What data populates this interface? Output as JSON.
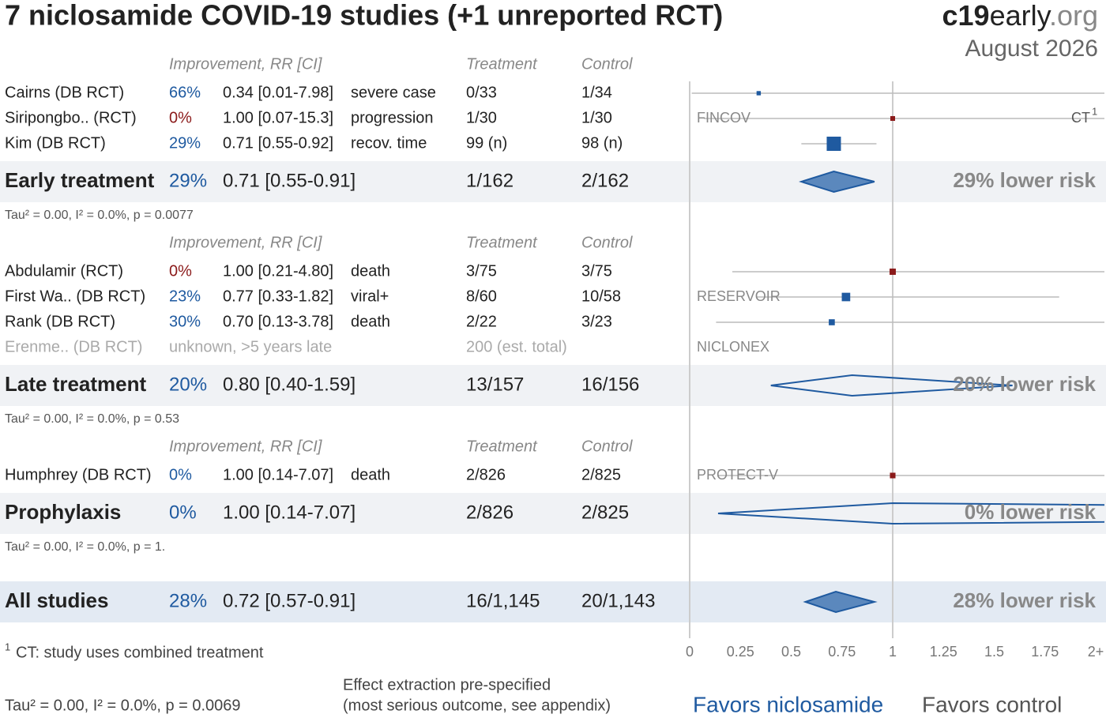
{
  "chart_data": {
    "type": "forest",
    "title": "7 niclosamide COVID-19 studies (+1 unreported RCT)",
    "brand": [
      "c19",
      "early",
      ".org"
    ],
    "date": "August 2026",
    "headers": [
      "Improvement, RR [CI]",
      "Treatment",
      "Control"
    ],
    "xlim": [
      0,
      2
    ],
    "xticks": [
      0,
      0.25,
      0.5,
      0.75,
      1,
      1.25,
      1.5,
      1.75,
      {
        "value": 2,
        "label": "2+"
      }
    ],
    "groups": [
      {
        "studies": [
          {
            "name": "Cairns (DB RCT)",
            "improvement": "66%",
            "color": "#1f5aa0",
            "rr": 0.34,
            "ci_low": 0.01,
            "ci_high": 7.98,
            "rr_label": "0.34 [0.01-7.98]",
            "outcome": "severe case",
            "treatment": "0/33",
            "control": "1/34"
          },
          {
            "name": "Siripongbo.. (RCT)",
            "improvement": "0%",
            "color": "#8b1a1a",
            "rr": 1.0,
            "ci_low": 0.07,
            "ci_high": 15.3,
            "rr_label": "1.00 [0.07-15.3]",
            "outcome": "progression",
            "treatment": "1/30",
            "control": "1/30",
            "trial": "FINCOV",
            "trial_right": "CT",
            "note_mark": "1"
          },
          {
            "name": "Kim (DB RCT)",
            "improvement": "29%",
            "color": "#1f5aa0",
            "rr": 0.71,
            "ci_low": 0.55,
            "ci_high": 0.92,
            "rr_label": "0.71 [0.55-0.92]",
            "outcome": "recov. time",
            "treatment": "99 (n)",
            "control": "98 (n)"
          }
        ],
        "summary": {
          "name": "Early treatment",
          "improvement": "29%",
          "rr": 0.71,
          "ci_low": 0.55,
          "ci_high": 0.91,
          "rr_label": "0.71 [0.55-0.91]",
          "treatment": "1/162",
          "control": "2/162",
          "risk_label": "29% lower risk",
          "filled": true
        },
        "stats": "Tau² = 0.00, I² = 0.0%, p = 0.0077"
      },
      {
        "studies": [
          {
            "name": "Abdulamir (RCT)",
            "improvement": "0%",
            "color": "#8b1a1a",
            "rr": 1.0,
            "ci_low": 0.21,
            "ci_high": 4.8,
            "rr_label": "1.00 [0.21-4.80]",
            "outcome": "death",
            "treatment": "3/75",
            "control": "3/75"
          },
          {
            "name": "First Wa.. (DB RCT)",
            "improvement": "23%",
            "color": "#1f5aa0",
            "rr": 0.77,
            "ci_low": 0.33,
            "ci_high": 1.82,
            "rr_label": "0.77 [0.33-1.82]",
            "outcome": "viral+",
            "treatment": "8/60",
            "control": "10/58",
            "trial": "RESERVOIR"
          },
          {
            "name": "Rank (DB RCT)",
            "improvement": "30%",
            "color": "#1f5aa0",
            "rr": 0.7,
            "ci_low": 0.13,
            "ci_high": 3.78,
            "rr_label": "0.70 [0.13-3.78]",
            "outcome": "death",
            "treatment": "2/22",
            "control": "3/23"
          },
          {
            "name": "Erenme.. (DB RCT)",
            "note": "unknown, >5 years late",
            "treatment": "200 (est. total)",
            "trial": "NICLONEX"
          }
        ],
        "summary": {
          "name": "Late treatment",
          "improvement": "20%",
          "rr": 0.8,
          "ci_low": 0.4,
          "ci_high": 1.59,
          "rr_label": "0.80 [0.40-1.59]",
          "treatment": "13/157",
          "control": "16/156",
          "risk_label": "20% lower risk",
          "filled": false
        },
        "stats": "Tau² = 0.00, I² = 0.0%, p = 0.53"
      },
      {
        "studies": [
          {
            "name": "Humphrey (DB RCT)",
            "improvement": "0%",
            "color": "#1f5aa0",
            "rr": 1.0,
            "ci_low": 0.14,
            "ci_high": 7.07,
            "rr_label": "1.00 [0.14-7.07]",
            "outcome": "death",
            "treatment": "2/826",
            "control": "2/825",
            "trial": "PROTECT-V"
          }
        ],
        "summary": {
          "name": "Prophylaxis",
          "improvement": "0%",
          "rr": 1.0,
          "ci_low": 0.14,
          "ci_high": 7.07,
          "rr_label": "1.00 [0.14-7.07]",
          "treatment": "2/826",
          "control": "2/825",
          "risk_label": "0% lower risk",
          "filled": false
        },
        "stats": "Tau² = 0.00, I² = 0.0%, p = 1."
      }
    ],
    "overall": {
      "name": "All studies",
      "improvement": "28%",
      "rr": 0.72,
      "ci_low": 0.57,
      "ci_high": 0.91,
      "rr_label": "0.72 [0.57-0.91]",
      "treatment": "16/1,145",
      "control": "20/1,143",
      "risk_label": "28% lower risk",
      "filled": true
    },
    "overall_stats": "Tau² = 0.00, I² = 0.0%, p = 0.0069",
    "footnote": {
      "mark": "1",
      "text": "CT: study uses combined treatment"
    },
    "method_note": [
      "Effect extraction pre-specified",
      "(most serious outcome, see appendix)"
    ],
    "favors": [
      "Favors niclosamide",
      "Favors control"
    ]
  }
}
